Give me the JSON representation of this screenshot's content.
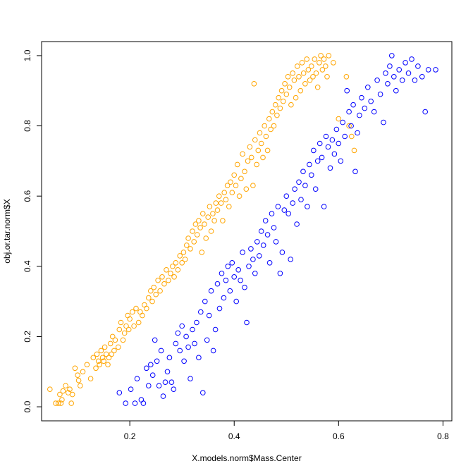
{
  "chart_data": {
    "type": "scatter",
    "title": "",
    "xlabel": "X.models.norm$Mass.Center",
    "ylabel": "obj.or.tar.norm$X",
    "xlim": [
      0.031,
      0.817
    ],
    "ylim": [
      -0.04,
      1.04
    ],
    "xticks": [
      0.2,
      0.4,
      0.6,
      0.8
    ],
    "xtick_labels": [
      "0.2",
      "0.4",
      "0.6",
      "0.8"
    ],
    "yticks": [
      0.0,
      0.2,
      0.4,
      0.6,
      0.8,
      1.0
    ],
    "ytick_labels": [
      "0.0",
      "0.2",
      "0.4",
      "0.6",
      "0.8",
      "1.0"
    ],
    "grid": false,
    "legend": "none",
    "marker": "open-circle",
    "series": [
      {
        "color": "#FFA500",
        "points": [
          [
            0.047,
            0.05
          ],
          [
            0.058,
            0.01
          ],
          [
            0.063,
            0.01
          ],
          [
            0.066,
            0.035
          ],
          [
            0.068,
            0.01
          ],
          [
            0.07,
            0.02
          ],
          [
            0.072,
            0.045
          ],
          [
            0.077,
            0.06
          ],
          [
            0.082,
            0.04
          ],
          [
            0.085,
            0.05
          ],
          [
            0.088,
            0.01
          ],
          [
            0.09,
            0.035
          ],
          [
            0.095,
            0.11
          ],
          [
            0.1,
            0.09
          ],
          [
            0.102,
            0.075
          ],
          [
            0.105,
            0.06
          ],
          [
            0.11,
            0.1
          ],
          [
            0.118,
            0.12
          ],
          [
            0.125,
            0.08
          ],
          [
            0.13,
            0.14
          ],
          [
            0.135,
            0.11
          ],
          [
            0.137,
            0.15
          ],
          [
            0.14,
            0.13
          ],
          [
            0.142,
            0.12
          ],
          [
            0.145,
            0.16
          ],
          [
            0.148,
            0.14
          ],
          [
            0.15,
            0.13
          ],
          [
            0.152,
            0.17
          ],
          [
            0.155,
            0.15
          ],
          [
            0.158,
            0.12
          ],
          [
            0.16,
            0.14
          ],
          [
            0.163,
            0.18
          ],
          [
            0.165,
            0.15
          ],
          [
            0.167,
            0.2
          ],
          [
            0.17,
            0.16
          ],
          [
            0.172,
            0.19
          ],
          [
            0.178,
            0.17
          ],
          [
            0.18,
            0.22
          ],
          [
            0.183,
            0.24
          ],
          [
            0.187,
            0.19
          ],
          [
            0.19,
            0.21
          ],
          [
            0.193,
            0.23
          ],
          [
            0.196,
            0.26
          ],
          [
            0.198,
            0.22
          ],
          [
            0.2,
            0.25
          ],
          [
            0.205,
            0.27
          ],
          [
            0.208,
            0.23
          ],
          [
            0.212,
            0.28
          ],
          [
            0.217,
            0.24
          ],
          [
            0.22,
            0.27
          ],
          [
            0.224,
            0.26
          ],
          [
            0.228,
            0.29
          ],
          [
            0.232,
            0.28
          ],
          [
            0.236,
            0.31
          ],
          [
            0.24,
            0.33
          ],
          [
            0.243,
            0.3
          ],
          [
            0.246,
            0.34
          ],
          [
            0.25,
            0.32
          ],
          [
            0.254,
            0.36
          ],
          [
            0.258,
            0.33
          ],
          [
            0.262,
            0.37
          ],
          [
            0.266,
            0.35
          ],
          [
            0.27,
            0.39
          ],
          [
            0.274,
            0.36
          ],
          [
            0.278,
            0.38
          ],
          [
            0.282,
            0.4
          ],
          [
            0.285,
            0.37
          ],
          [
            0.288,
            0.41
          ],
          [
            0.292,
            0.39
          ],
          [
            0.296,
            0.43
          ],
          [
            0.3,
            0.41
          ],
          [
            0.303,
            0.44
          ],
          [
            0.306,
            0.42
          ],
          [
            0.309,
            0.46
          ],
          [
            0.312,
            0.48
          ],
          [
            0.316,
            0.45
          ],
          [
            0.32,
            0.5
          ],
          [
            0.323,
            0.47
          ],
          [
            0.326,
            0.52
          ],
          [
            0.329,
            0.49
          ],
          [
            0.332,
            0.53
          ],
          [
            0.335,
            0.51
          ],
          [
            0.338,
            0.44
          ],
          [
            0.34,
            0.55
          ],
          [
            0.343,
            0.52
          ],
          [
            0.346,
            0.48
          ],
          [
            0.35,
            0.54
          ],
          [
            0.353,
            0.57
          ],
          [
            0.356,
            0.5
          ],
          [
            0.359,
            0.55
          ],
          [
            0.362,
            0.53
          ],
          [
            0.365,
            0.58
          ],
          [
            0.368,
            0.56
          ],
          [
            0.371,
            0.6
          ],
          [
            0.375,
            0.58
          ],
          [
            0.378,
            0.53
          ],
          [
            0.381,
            0.61
          ],
          [
            0.384,
            0.59
          ],
          [
            0.387,
            0.63
          ],
          [
            0.39,
            0.57
          ],
          [
            0.393,
            0.64
          ],
          [
            0.396,
            0.61
          ],
          [
            0.4,
            0.66
          ],
          [
            0.403,
            0.63
          ],
          [
            0.406,
            0.69
          ],
          [
            0.41,
            0.6
          ],
          [
            0.413,
            0.65
          ],
          [
            0.416,
            0.72
          ],
          [
            0.42,
            0.67
          ],
          [
            0.423,
            0.62
          ],
          [
            0.426,
            0.7
          ],
          [
            0.43,
            0.74
          ],
          [
            0.433,
            0.71
          ],
          [
            0.436,
            0.63
          ],
          [
            0.438,
            0.92
          ],
          [
            0.44,
            0.76
          ],
          [
            0.443,
            0.69
          ],
          [
            0.446,
            0.73
          ],
          [
            0.449,
            0.78
          ],
          [
            0.452,
            0.75
          ],
          [
            0.455,
            0.71
          ],
          [
            0.458,
            0.8
          ],
          [
            0.461,
            0.77
          ],
          [
            0.464,
            0.73
          ],
          [
            0.467,
            0.82
          ],
          [
            0.47,
            0.79
          ],
          [
            0.473,
            0.84
          ],
          [
            0.476,
            0.8
          ],
          [
            0.479,
            0.86
          ],
          [
            0.482,
            0.83
          ],
          [
            0.485,
            0.88
          ],
          [
            0.488,
            0.85
          ],
          [
            0.491,
            0.9
          ],
          [
            0.494,
            0.87
          ],
          [
            0.497,
            0.92
          ],
          [
            0.5,
            0.89
          ],
          [
            0.503,
            0.94
          ],
          [
            0.506,
            0.91
          ],
          [
            0.509,
            0.86
          ],
          [
            0.512,
            0.95
          ],
          [
            0.515,
            0.93
          ],
          [
            0.518,
            0.88
          ],
          [
            0.521,
            0.97
          ],
          [
            0.524,
            0.94
          ],
          [
            0.527,
            0.9
          ],
          [
            0.53,
            0.98
          ],
          [
            0.533,
            0.95
          ],
          [
            0.536,
            0.92
          ],
          [
            0.539,
            0.99
          ],
          [
            0.542,
            0.96
          ],
          [
            0.545,
            0.93
          ],
          [
            0.548,
            0.97
          ],
          [
            0.551,
            0.94
          ],
          [
            0.554,
            0.99
          ],
          [
            0.557,
            0.95
          ],
          [
            0.56,
            0.91
          ],
          [
            0.563,
            0.98
          ],
          [
            0.566,
            1.0
          ],
          [
            0.569,
            0.96
          ],
          [
            0.572,
            0.99
          ],
          [
            0.575,
            0.97
          ],
          [
            0.578,
            0.94
          ],
          [
            0.581,
            1.0
          ],
          [
            0.59,
            0.98
          ],
          [
            0.6,
            0.82
          ],
          [
            0.615,
            0.94
          ],
          [
            0.62,
            0.8
          ],
          [
            0.625,
            0.77
          ],
          [
            0.63,
            0.73
          ]
        ]
      },
      {
        "color": "#0000FF",
        "points": [
          [
            0.18,
            0.04
          ],
          [
            0.192,
            0.01
          ],
          [
            0.202,
            0.05
          ],
          [
            0.21,
            0.01
          ],
          [
            0.214,
            0.08
          ],
          [
            0.222,
            0.02
          ],
          [
            0.226,
            0.01
          ],
          [
            0.232,
            0.11
          ],
          [
            0.236,
            0.06
          ],
          [
            0.24,
            0.12
          ],
          [
            0.244,
            0.09
          ],
          [
            0.248,
            0.19
          ],
          [
            0.252,
            0.13
          ],
          [
            0.256,
            0.06
          ],
          [
            0.26,
            0.16
          ],
          [
            0.264,
            0.03
          ],
          [
            0.268,
            0.07
          ],
          [
            0.272,
            0.1
          ],
          [
            0.276,
            0.14
          ],
          [
            0.28,
            0.07
          ],
          [
            0.284,
            0.05
          ],
          [
            0.288,
            0.18
          ],
          [
            0.292,
            0.21
          ],
          [
            0.296,
            0.16
          ],
          [
            0.3,
            0.23
          ],
          [
            0.304,
            0.13
          ],
          [
            0.308,
            0.2
          ],
          [
            0.312,
            0.17
          ],
          [
            0.316,
            0.08
          ],
          [
            0.32,
            0.22
          ],
          [
            0.324,
            0.18
          ],
          [
            0.328,
            0.24
          ],
          [
            0.332,
            0.14
          ],
          [
            0.336,
            0.27
          ],
          [
            0.34,
            0.04
          ],
          [
            0.344,
            0.3
          ],
          [
            0.348,
            0.19
          ],
          [
            0.352,
            0.26
          ],
          [
            0.356,
            0.33
          ],
          [
            0.36,
            0.16
          ],
          [
            0.364,
            0.22
          ],
          [
            0.368,
            0.35
          ],
          [
            0.372,
            0.28
          ],
          [
            0.376,
            0.38
          ],
          [
            0.38,
            0.31
          ],
          [
            0.384,
            0.36
          ],
          [
            0.388,
            0.4
          ],
          [
            0.392,
            0.33
          ],
          [
            0.396,
            0.41
          ],
          [
            0.4,
            0.37
          ],
          [
            0.404,
            0.3
          ],
          [
            0.408,
            0.39
          ],
          [
            0.412,
            0.36
          ],
          [
            0.416,
            0.44
          ],
          [
            0.42,
            0.34
          ],
          [
            0.424,
            0.24
          ],
          [
            0.428,
            0.4
          ],
          [
            0.432,
            0.45
          ],
          [
            0.436,
            0.42
          ],
          [
            0.44,
            0.38
          ],
          [
            0.444,
            0.47
          ],
          [
            0.448,
            0.43
          ],
          [
            0.452,
            0.5
          ],
          [
            0.456,
            0.46
          ],
          [
            0.46,
            0.53
          ],
          [
            0.464,
            0.49
          ],
          [
            0.468,
            0.41
          ],
          [
            0.472,
            0.55
          ],
          [
            0.476,
            0.51
          ],
          [
            0.48,
            0.47
          ],
          [
            0.484,
            0.57
          ],
          [
            0.488,
            0.38
          ],
          [
            0.492,
            0.44
          ],
          [
            0.496,
            0.56
          ],
          [
            0.5,
            0.6
          ],
          [
            0.504,
            0.55
          ],
          [
            0.508,
            0.42
          ],
          [
            0.512,
            0.58
          ],
          [
            0.516,
            0.62
          ],
          [
            0.52,
            0.52
          ],
          [
            0.524,
            0.64
          ],
          [
            0.528,
            0.59
          ],
          [
            0.532,
            0.67
          ],
          [
            0.536,
            0.63
          ],
          [
            0.54,
            0.57
          ],
          [
            0.544,
            0.69
          ],
          [
            0.548,
            0.66
          ],
          [
            0.552,
            0.73
          ],
          [
            0.556,
            0.62
          ],
          [
            0.56,
            0.7
          ],
          [
            0.564,
            0.75
          ],
          [
            0.568,
            0.71
          ],
          [
            0.572,
            0.57
          ],
          [
            0.576,
            0.77
          ],
          [
            0.58,
            0.74
          ],
          [
            0.584,
            0.68
          ],
          [
            0.588,
            0.76
          ],
          [
            0.592,
            0.72
          ],
          [
            0.596,
            0.79
          ],
          [
            0.6,
            0.75
          ],
          [
            0.604,
            0.7
          ],
          [
            0.608,
            0.81
          ],
          [
            0.612,
            0.77
          ],
          [
            0.616,
            0.9
          ],
          [
            0.62,
            0.84
          ],
          [
            0.624,
            0.8
          ],
          [
            0.628,
            0.86
          ],
          [
            0.632,
            0.67
          ],
          [
            0.636,
            0.78
          ],
          [
            0.64,
            0.83
          ],
          [
            0.644,
            0.88
          ],
          [
            0.65,
            0.85
          ],
          [
            0.656,
            0.91
          ],
          [
            0.662,
            0.87
          ],
          [
            0.668,
            0.84
          ],
          [
            0.674,
            0.93
          ],
          [
            0.68,
            0.89
          ],
          [
            0.686,
            0.81
          ],
          [
            0.69,
            0.95
          ],
          [
            0.694,
            0.92
          ],
          [
            0.698,
            0.97
          ],
          [
            0.702,
            1.0
          ],
          [
            0.706,
            0.94
          ],
          [
            0.71,
            0.9
          ],
          [
            0.716,
            0.96
          ],
          [
            0.722,
            0.93
          ],
          [
            0.728,
            0.98
          ],
          [
            0.734,
            0.95
          ],
          [
            0.74,
            0.99
          ],
          [
            0.746,
            0.93
          ],
          [
            0.752,
            0.97
          ],
          [
            0.76,
            0.94
          ],
          [
            0.766,
            0.84
          ],
          [
            0.772,
            0.96
          ],
          [
            0.786,
            0.96
          ]
        ]
      }
    ]
  }
}
